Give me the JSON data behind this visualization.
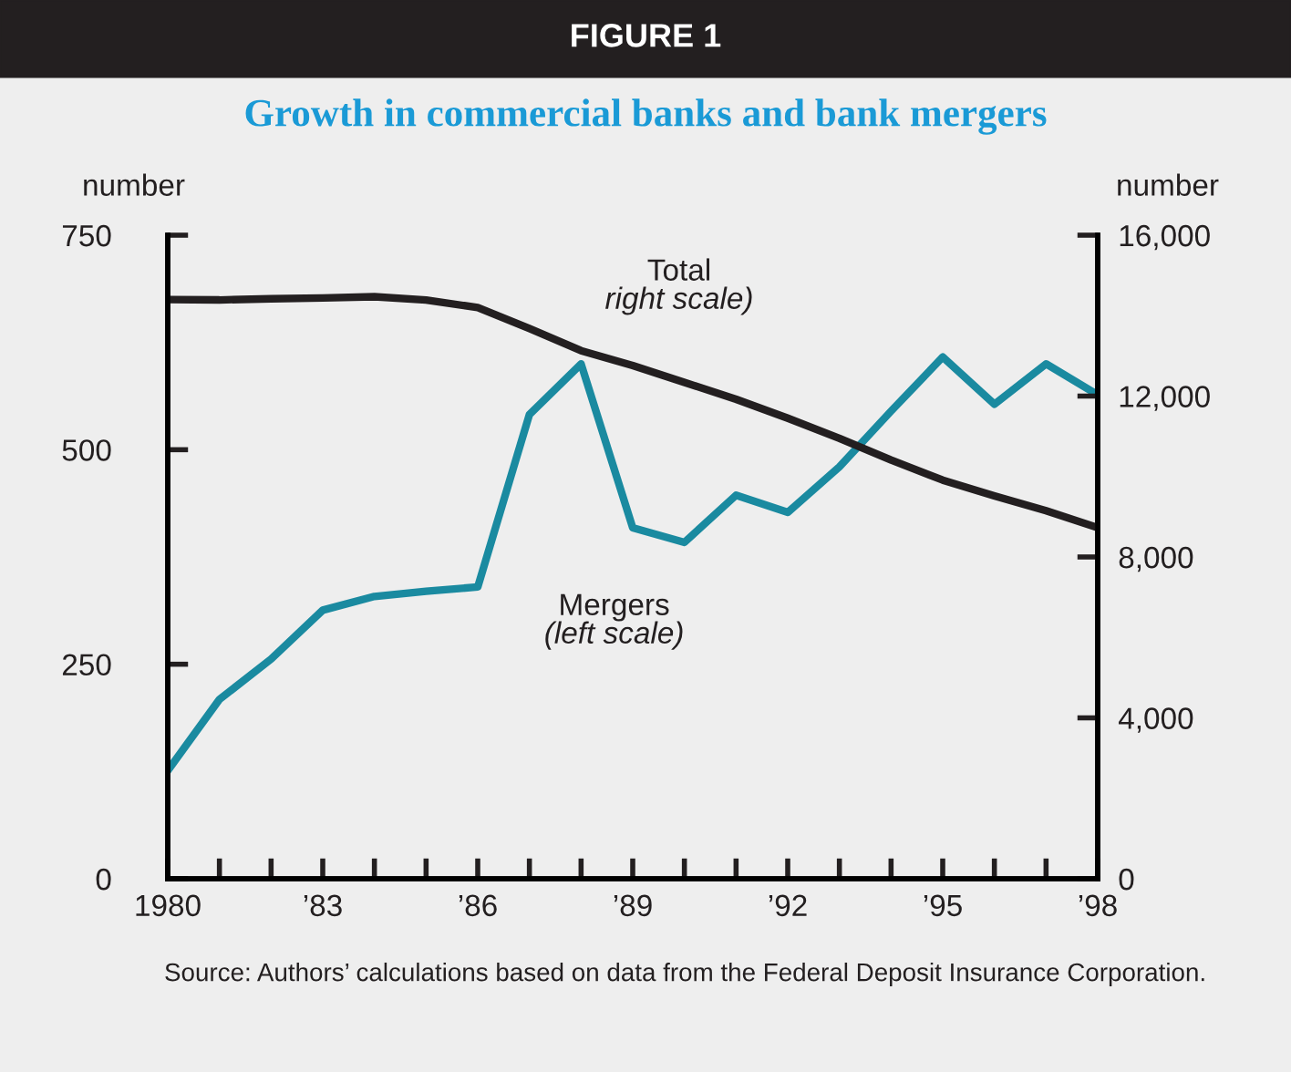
{
  "chart_data": {
    "type": "line",
    "title": "FIGURE 1",
    "subtitle": "Growth in commercial banks and bank mergers",
    "ylabel": "number",
    "y2label": "number",
    "x": [
      1980,
      1981,
      1982,
      1983,
      1984,
      1985,
      1986,
      1987,
      1988,
      1989,
      1990,
      1991,
      1992,
      1993,
      1994,
      1995,
      1996,
      1997,
      1998
    ],
    "xlim": [
      1980,
      1998
    ],
    "xticks": [
      {
        "value": 1980,
        "label": "1980"
      },
      {
        "value": 1981,
        "label": null
      },
      {
        "value": 1982,
        "label": null
      },
      {
        "value": 1983,
        "label": "’83"
      },
      {
        "value": 1984,
        "label": null
      },
      {
        "value": 1985,
        "label": null
      },
      {
        "value": 1986,
        "label": "’86"
      },
      {
        "value": 1987,
        "label": null
      },
      {
        "value": 1988,
        "label": null
      },
      {
        "value": 1989,
        "label": "’89"
      },
      {
        "value": 1990,
        "label": null
      },
      {
        "value": 1991,
        "label": null
      },
      {
        "value": 1992,
        "label": "’92"
      },
      {
        "value": 1993,
        "label": null
      },
      {
        "value": 1994,
        "label": null
      },
      {
        "value": 1995,
        "label": "’95"
      },
      {
        "value": 1996,
        "label": null
      },
      {
        "value": 1997,
        "label": null
      },
      {
        "value": 1998,
        "label": "’98"
      }
    ],
    "ylim": [
      0,
      750
    ],
    "yticks": [
      0,
      250,
      500,
      750
    ],
    "y2lim": [
      0,
      16000
    ],
    "y2ticks": [
      0,
      {
        "value": 4000,
        "label": "4,000"
      },
      {
        "value": 8000,
        "label": "8,000"
      },
      {
        "value": 12000,
        "label": "12,000"
      },
      {
        "value": 16000,
        "label": "16,000"
      }
    ],
    "series": [
      {
        "name": "Mergers\n(left scale)",
        "color": "#1a8aa0",
        "values": [
          126,
          209,
          256,
          313,
          329,
          335,
          340,
          541,
          600,
          409,
          392,
          447,
          427,
          480,
          545,
          608,
          553,
          600,
          564
        ]
      },
      {
        "name": "Total\nright scale)",
        "color": "#231f20",
        "axis": "y2",
        "values": [
          14400,
          14390,
          14420,
          14440,
          14470,
          14390,
          14200,
          13680,
          13130,
          12760,
          12340,
          11920,
          11450,
          10950,
          10410,
          9910,
          9520,
          9150,
          8730
        ]
      }
    ],
    "grid": false,
    "legend": false,
    "marker": "none",
    "line_style": "solid",
    "annotations": [
      "Source: Authors’ calculations based on data from the Federal Deposit Insurance Corporation."
    ]
  }
}
